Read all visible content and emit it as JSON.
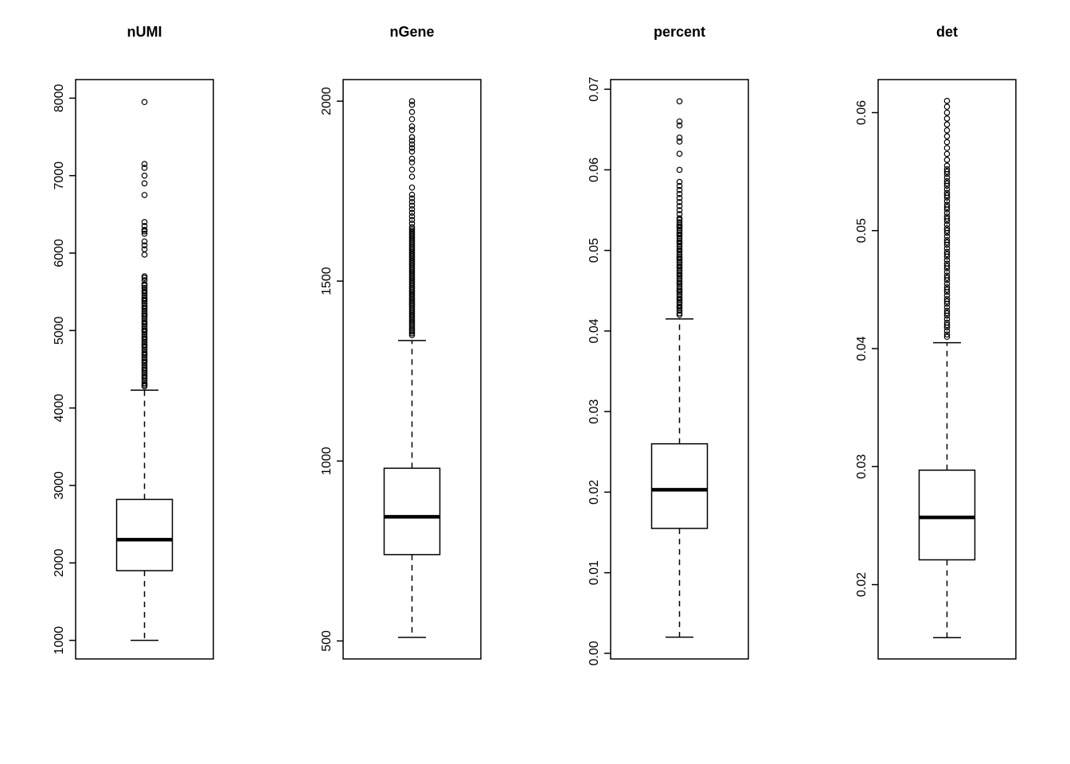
{
  "figure": {
    "background": "#ffffff",
    "stroke_color": "#000000",
    "box_fill": "#ffffff"
  },
  "chart_data": [
    {
      "type": "boxplot",
      "title": "nUMI",
      "ylim": [
        760,
        8240
      ],
      "tick_values": [
        1000,
        2000,
        3000,
        4000,
        5000,
        6000,
        7000,
        8000
      ],
      "tick_labels": [
        "1000",
        "2000",
        "3000",
        "4000",
        "5000",
        "6000",
        "7000",
        "8000"
      ],
      "stats": {
        "whisker_low": 1000,
        "q1": 1900,
        "median": 2300,
        "q3": 2820,
        "whisker_high": 4230
      },
      "outliers": [
        7950,
        7150,
        7100,
        7000,
        6900,
        6750,
        6400,
        6350,
        6300,
        6280,
        6250,
        6150,
        6100,
        6050,
        5980,
        5700,
        5680,
        5650,
        5600,
        5580,
        5550,
        5520,
        5500,
        5480,
        5450,
        5420,
        5400,
        5380,
        5350,
        5320,
        5300,
        5280,
        5250,
        5220,
        5200,
        5180,
        5150,
        5120,
        5100,
        5080,
        5050,
        5020,
        5000,
        4980,
        4950,
        4920,
        4900,
        4880,
        4850,
        4820,
        4800,
        4780,
        4750,
        4720,
        4700,
        4680,
        4650,
        4620,
        4600,
        4580,
        4550,
        4520,
        4500,
        4480,
        4450,
        4420,
        4400,
        4380,
        4350,
        4320,
        4300,
        4280
      ]
    },
    {
      "type": "boxplot",
      "title": "nGene",
      "ylim": [
        450,
        2060
      ],
      "tick_values": [
        500,
        1000,
        1500,
        2000
      ],
      "tick_labels": [
        "500",
        "1000",
        "1500",
        "2000"
      ],
      "stats": {
        "whisker_low": 510,
        "q1": 740,
        "median": 845,
        "q3": 980,
        "whisker_high": 1335
      },
      "outliers": [
        2000,
        1990,
        1970,
        1950,
        1930,
        1920,
        1900,
        1890,
        1880,
        1870,
        1860,
        1840,
        1830,
        1810,
        1790,
        1760,
        1740,
        1730,
        1720,
        1710,
        1700,
        1690,
        1680,
        1670,
        1660,
        1650,
        1645,
        1640,
        1635,
        1630,
        1625,
        1620,
        1615,
        1610,
        1605,
        1600,
        1595,
        1590,
        1585,
        1580,
        1575,
        1570,
        1565,
        1560,
        1555,
        1550,
        1545,
        1540,
        1535,
        1530,
        1525,
        1520,
        1515,
        1510,
        1505,
        1500,
        1495,
        1490,
        1485,
        1480,
        1475,
        1470,
        1465,
        1460,
        1455,
        1450,
        1445,
        1440,
        1435,
        1430,
        1425,
        1420,
        1415,
        1410,
        1405,
        1400,
        1395,
        1390,
        1385,
        1380,
        1375,
        1370,
        1365,
        1360,
        1355,
        1350
      ]
    },
    {
      "type": "boxplot",
      "title": "percent",
      "ylim": [
        -0.0007,
        0.0712
      ],
      "tick_values": [
        0.0,
        0.01,
        0.02,
        0.03,
        0.04,
        0.05,
        0.06,
        0.07
      ],
      "tick_labels": [
        "0.00",
        "0.01",
        "0.02",
        "0.03",
        "0.04",
        "0.05",
        "0.06",
        "0.07"
      ],
      "stats": {
        "whisker_low": 0.002,
        "q1": 0.0155,
        "median": 0.0203,
        "q3": 0.026,
        "whisker_high": 0.0415
      },
      "outliers": [
        0.0685,
        0.066,
        0.0655,
        0.064,
        0.0635,
        0.062,
        0.06,
        0.0585,
        0.058,
        0.0575,
        0.057,
        0.0565,
        0.056,
        0.0555,
        0.055,
        0.0545,
        0.054,
        0.0538,
        0.0535,
        0.0532,
        0.053,
        0.0528,
        0.0525,
        0.0522,
        0.052,
        0.0518,
        0.0515,
        0.0512,
        0.051,
        0.0508,
        0.0505,
        0.0502,
        0.05,
        0.0498,
        0.0495,
        0.0492,
        0.049,
        0.0488,
        0.0485,
        0.0482,
        0.048,
        0.0478,
        0.0475,
        0.0472,
        0.047,
        0.0468,
        0.0465,
        0.0462,
        0.046,
        0.0458,
        0.0455,
        0.0452,
        0.045,
        0.0448,
        0.0445,
        0.0442,
        0.044,
        0.0438,
        0.0435,
        0.0432,
        0.043,
        0.0428,
        0.0425,
        0.0422,
        0.042
      ]
    },
    {
      "type": "boxplot",
      "title": "det",
      "ylim": [
        0.0137,
        0.0628
      ],
      "tick_values": [
        0.02,
        0.03,
        0.04,
        0.05,
        0.06
      ],
      "tick_labels": [
        "0.02",
        "0.03",
        "0.04",
        "0.05",
        "0.06"
      ],
      "stats": {
        "whisker_low": 0.0155,
        "q1": 0.0221,
        "median": 0.0257,
        "q3": 0.0297,
        "whisker_high": 0.0405
      },
      "outliers": [
        0.061,
        0.0605,
        0.06,
        0.0595,
        0.059,
        0.0585,
        0.058,
        0.0575,
        0.057,
        0.0565,
        0.056,
        0.0555,
        0.0552,
        0.055,
        0.0548,
        0.0545,
        0.0542,
        0.054,
        0.0538,
        0.0535,
        0.0532,
        0.053,
        0.0528,
        0.0525,
        0.0522,
        0.052,
        0.0518,
        0.0515,
        0.0512,
        0.051,
        0.0508,
        0.0505,
        0.0502,
        0.05,
        0.0498,
        0.0495,
        0.0492,
        0.049,
        0.0488,
        0.0485,
        0.0482,
        0.048,
        0.0478,
        0.0475,
        0.0472,
        0.047,
        0.0468,
        0.0465,
        0.0462,
        0.046,
        0.0458,
        0.0455,
        0.0452,
        0.045,
        0.0448,
        0.0445,
        0.0442,
        0.044,
        0.0438,
        0.0435,
        0.0432,
        0.043,
        0.0428,
        0.0425,
        0.0422,
        0.042,
        0.0418,
        0.0415,
        0.0412,
        0.041
      ]
    }
  ]
}
